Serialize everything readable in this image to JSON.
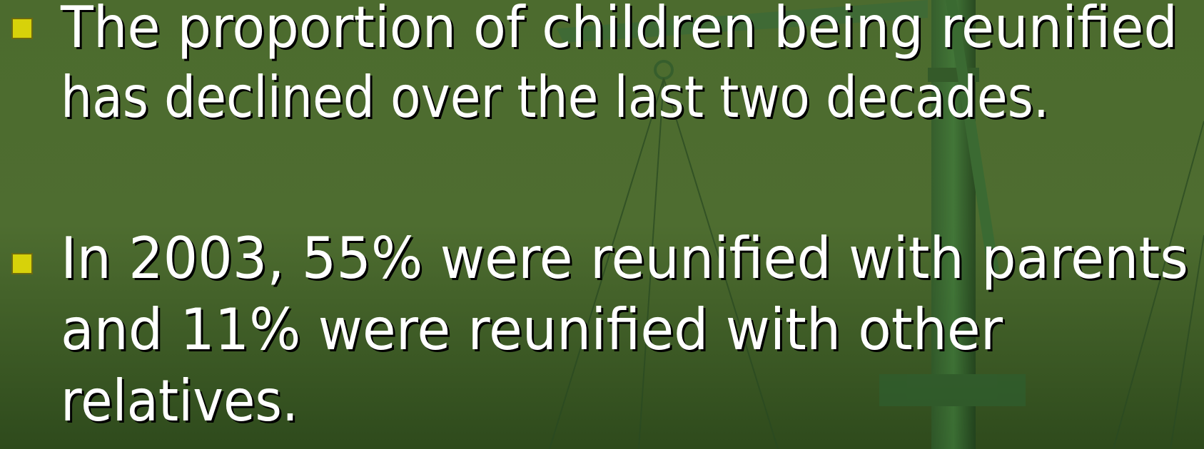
{
  "bullets": [
    {
      "lines": [
        "The proportion of children being reunified",
        "has declined over the last two decades."
      ]
    },
    {
      "lines": [
        "In 2003, 55% were reunified with parents",
        "and 11% were reunified with other",
        "relatives."
      ]
    }
  ]
}
